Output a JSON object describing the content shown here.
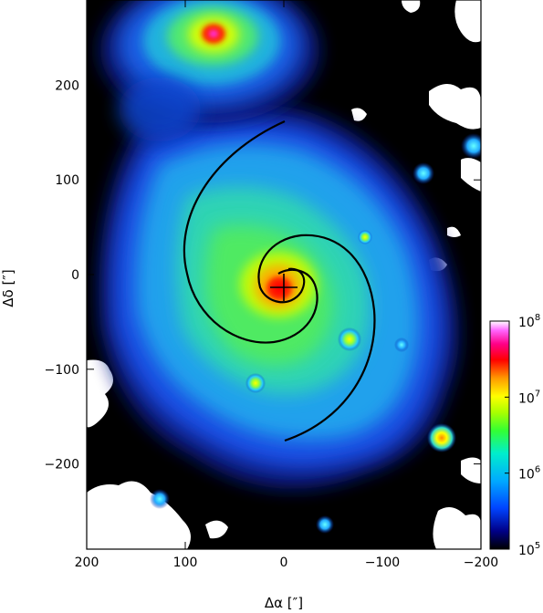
{
  "x_axis": {
    "title": "Δα [″]",
    "ticks": [
      {
        "value": 200,
        "label": "200"
      },
      {
        "value": 100,
        "label": "100"
      },
      {
        "value": 0,
        "label": "0"
      },
      {
        "value": -100,
        "label": "−100"
      },
      {
        "value": -200,
        "label": "−200"
      }
    ],
    "range": [
      200,
      -200
    ]
  },
  "y_axis": {
    "title": "Δδ [″]",
    "ticks": [
      {
        "value": 200,
        "label": "200"
      },
      {
        "value": 100,
        "label": "100"
      },
      {
        "value": 0,
        "label": "0"
      },
      {
        "value": -100,
        "label": "−100"
      },
      {
        "value": -200,
        "label": "−200"
      }
    ],
    "range": [
      -290,
      290
    ]
  },
  "colorbar": {
    "scale": "log",
    "range": [
      100000,
      100000000
    ],
    "labels": [
      {
        "value": 100000000,
        "base": "10",
        "exp": "8"
      },
      {
        "value": 10000000,
        "base": "10",
        "exp": "7"
      },
      {
        "value": 1000000,
        "base": "10",
        "exp": "6"
      },
      {
        "value": 100000,
        "base": "10",
        "exp": "5"
      }
    ],
    "colors": [
      "#000000",
      "#0000cc",
      "#0066ff",
      "#00ccff",
      "#00ff99",
      "#66ff00",
      "#ffff00",
      "#ff9900",
      "#ff0000",
      "#ff00cc",
      "#ffffff"
    ]
  },
  "image": {
    "description_colors": {
      "background": "#000000",
      "blank": "#ffffff"
    }
  }
}
